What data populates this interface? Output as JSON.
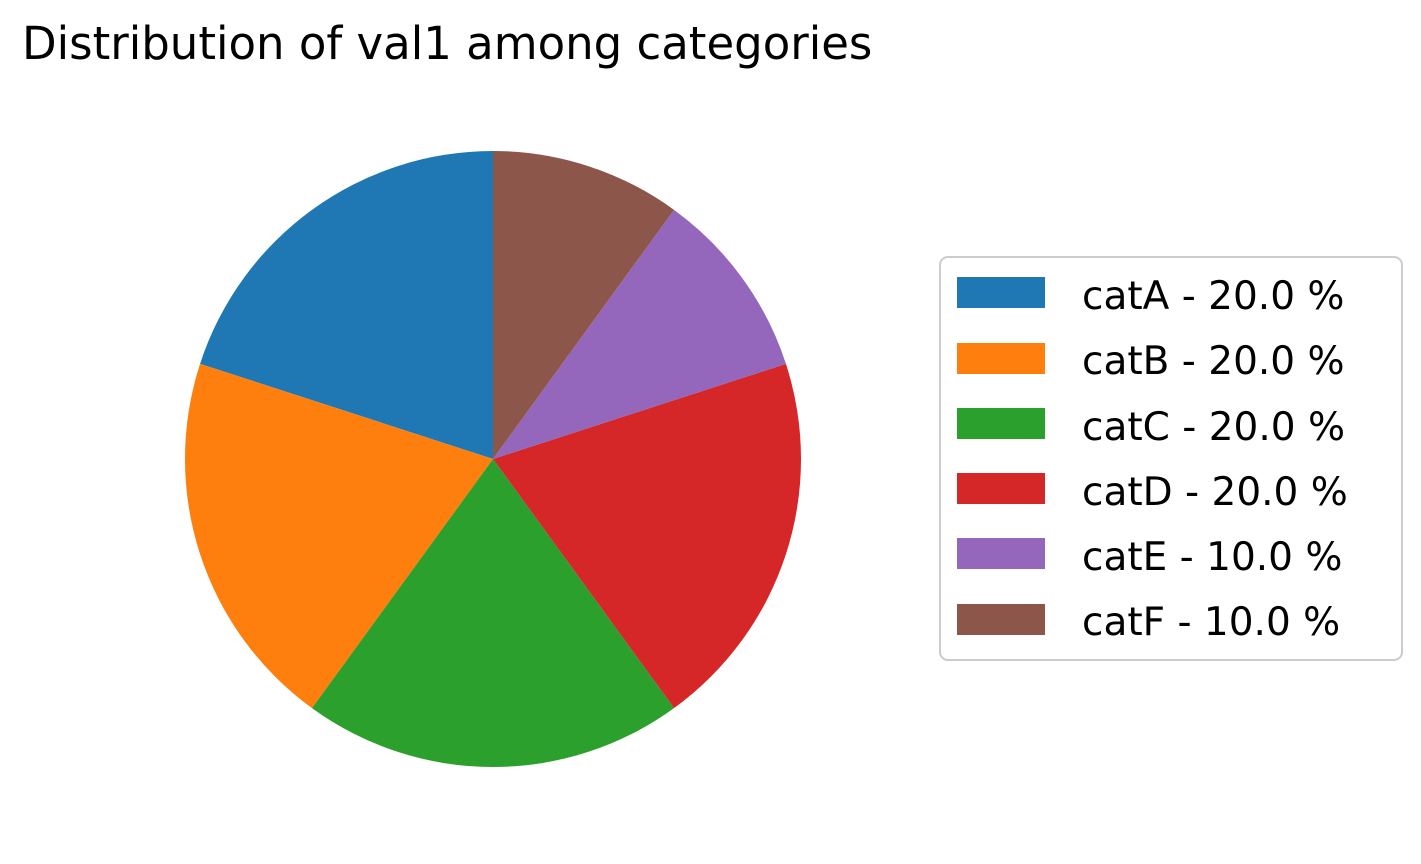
{
  "chart_data": {
    "type": "pie",
    "title": "Distribution of val1 among categories",
    "categories": [
      "catA",
      "catB",
      "catC",
      "catD",
      "catE",
      "catF"
    ],
    "values": [
      20.0,
      20.0,
      20.0,
      20.0,
      10.0,
      10.0
    ],
    "colors": [
      "#1f77b4",
      "#ff7f0e",
      "#2ca02c",
      "#d62728",
      "#9467bd",
      "#8c564b"
    ],
    "start_angle_deg": 90,
    "direction": "counterclockwise",
    "legend_placement": "right",
    "legend": [
      "catA - 20.0 %",
      "catB - 20.0 %",
      "catC - 20.0 %",
      "catD - 20.0 %",
      "catE - 10.0 %",
      "catF - 10.0 %"
    ]
  }
}
